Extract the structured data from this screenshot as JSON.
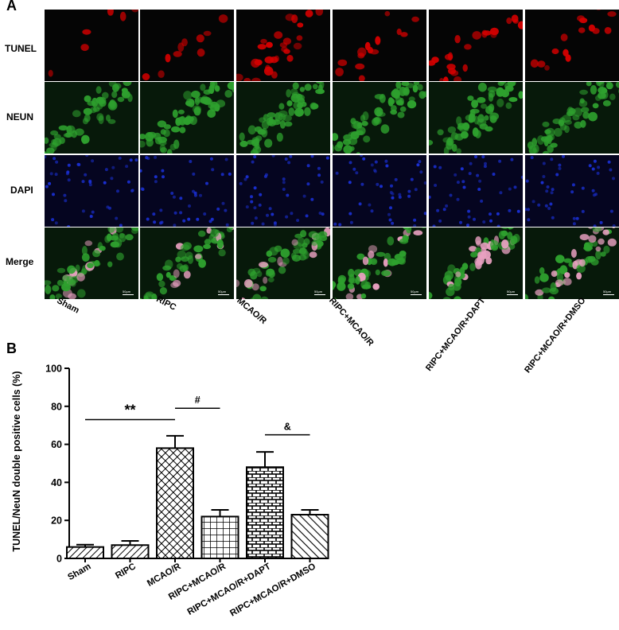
{
  "panel_a": {
    "letter": "A",
    "rows": [
      "TUNEL",
      "NEUN",
      "DAPI",
      "Merge"
    ],
    "groups": [
      "Sham",
      "RIPC",
      "MCAO/R",
      "RIPC+MCAO/R",
      "RIPC+MCAO/R+DAPT",
      "RIPC+MCAO/R+DMSO"
    ],
    "scale_bar": "50μm",
    "stain_colors": {
      "TUNEL": "#d40000",
      "NEUN": "#2ea02e",
      "DAPI": "#1a2fd0",
      "Merge": "#e8a0c0"
    }
  },
  "panel_b": {
    "letter": "B"
  },
  "chart_data": {
    "type": "bar",
    "categories": [
      "Sham",
      "RIPC",
      "MCAO/R",
      "RIPC+MCAO/R",
      "RIPC+MCAO/R+DAPT",
      "RIPC+MCAO/R+DMSO"
    ],
    "values": [
      6,
      7,
      58,
      22,
      48,
      23
    ],
    "errors": [
      1.2,
      2.2,
      6.5,
      3.5,
      8,
      2.5
    ],
    "patterns": [
      "diag-right",
      "diag-right",
      "cross-hatch",
      "grid",
      "brick",
      "diag-left"
    ],
    "ylabel": "TUNEL/NeuN double positive cells (%)",
    "xlabel": "",
    "ylim": [
      0,
      100
    ],
    "yticks": [
      0,
      20,
      40,
      60,
      80,
      100
    ],
    "annotations": [
      {
        "text": "**",
        "from": 0,
        "to": 2,
        "y": 73
      },
      {
        "text": "#",
        "from": 2,
        "to": 3,
        "y": 79
      },
      {
        "text": "&",
        "from": 4,
        "to": 5,
        "y": 65
      }
    ]
  }
}
